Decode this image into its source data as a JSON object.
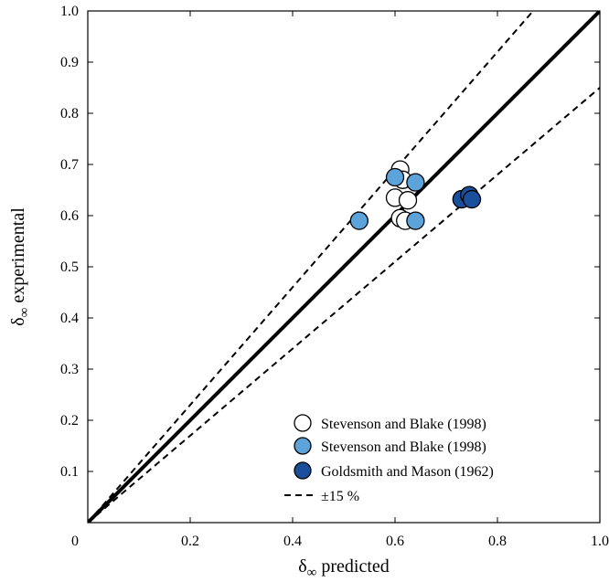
{
  "chart_data": {
    "type": "scatter",
    "xlabel_symbol": "δ",
    "xlabel_subscript": "∞",
    "xlabel_text": " predicted",
    "ylabel_symbol": "δ",
    "ylabel_subscript": "∞",
    "ylabel_text": " experimental",
    "xlim": [
      0,
      1
    ],
    "ylim": [
      0,
      1
    ],
    "x_ticks": [
      0,
      0.2,
      0.4,
      0.6,
      0.8,
      1.0
    ],
    "x_tick_labels": [
      "0",
      "0.2",
      "0.4",
      "0.6",
      "0.8",
      "1.0"
    ],
    "y_ticks": [
      0.1,
      0.2,
      0.3,
      0.4,
      0.5,
      0.6,
      0.7,
      0.8,
      0.9,
      1.0
    ],
    "y_tick_labels": [
      "0.1",
      "0.2",
      "0.3",
      "0.4",
      "0.5",
      "0.6",
      "0.7",
      "0.8",
      "0.9",
      "1.0"
    ],
    "grid": false,
    "legend_position": "bottom-right",
    "series": [
      {
        "name": "Stevenson and Blake (1998)",
        "color": "#ffffff",
        "points": [
          [
            0.61,
            0.69
          ],
          [
            0.615,
            0.67
          ],
          [
            0.6,
            0.635
          ],
          [
            0.625,
            0.63
          ],
          [
            0.61,
            0.595
          ],
          [
            0.62,
            0.59
          ]
        ]
      },
      {
        "name": "Stevenson and Blake (1998)",
        "color": "#5ba3d9",
        "points": [
          [
            0.53,
            0.59
          ],
          [
            0.6,
            0.675
          ],
          [
            0.64,
            0.665
          ],
          [
            0.64,
            0.59
          ]
        ]
      },
      {
        "name": "Goldsmith and Mason (1962)",
        "color": "#1a4f9c",
        "points": [
          [
            0.73,
            0.632
          ],
          [
            0.745,
            0.64
          ],
          [
            0.75,
            0.632
          ]
        ]
      }
    ],
    "reference_lines": [
      {
        "name": "",
        "style": "solid",
        "slope": 1.0
      },
      {
        "name": "±15 %",
        "style": "dashed",
        "slope": 1.15
      },
      {
        "name": "",
        "style": "dashed",
        "slope": 0.85
      }
    ]
  }
}
